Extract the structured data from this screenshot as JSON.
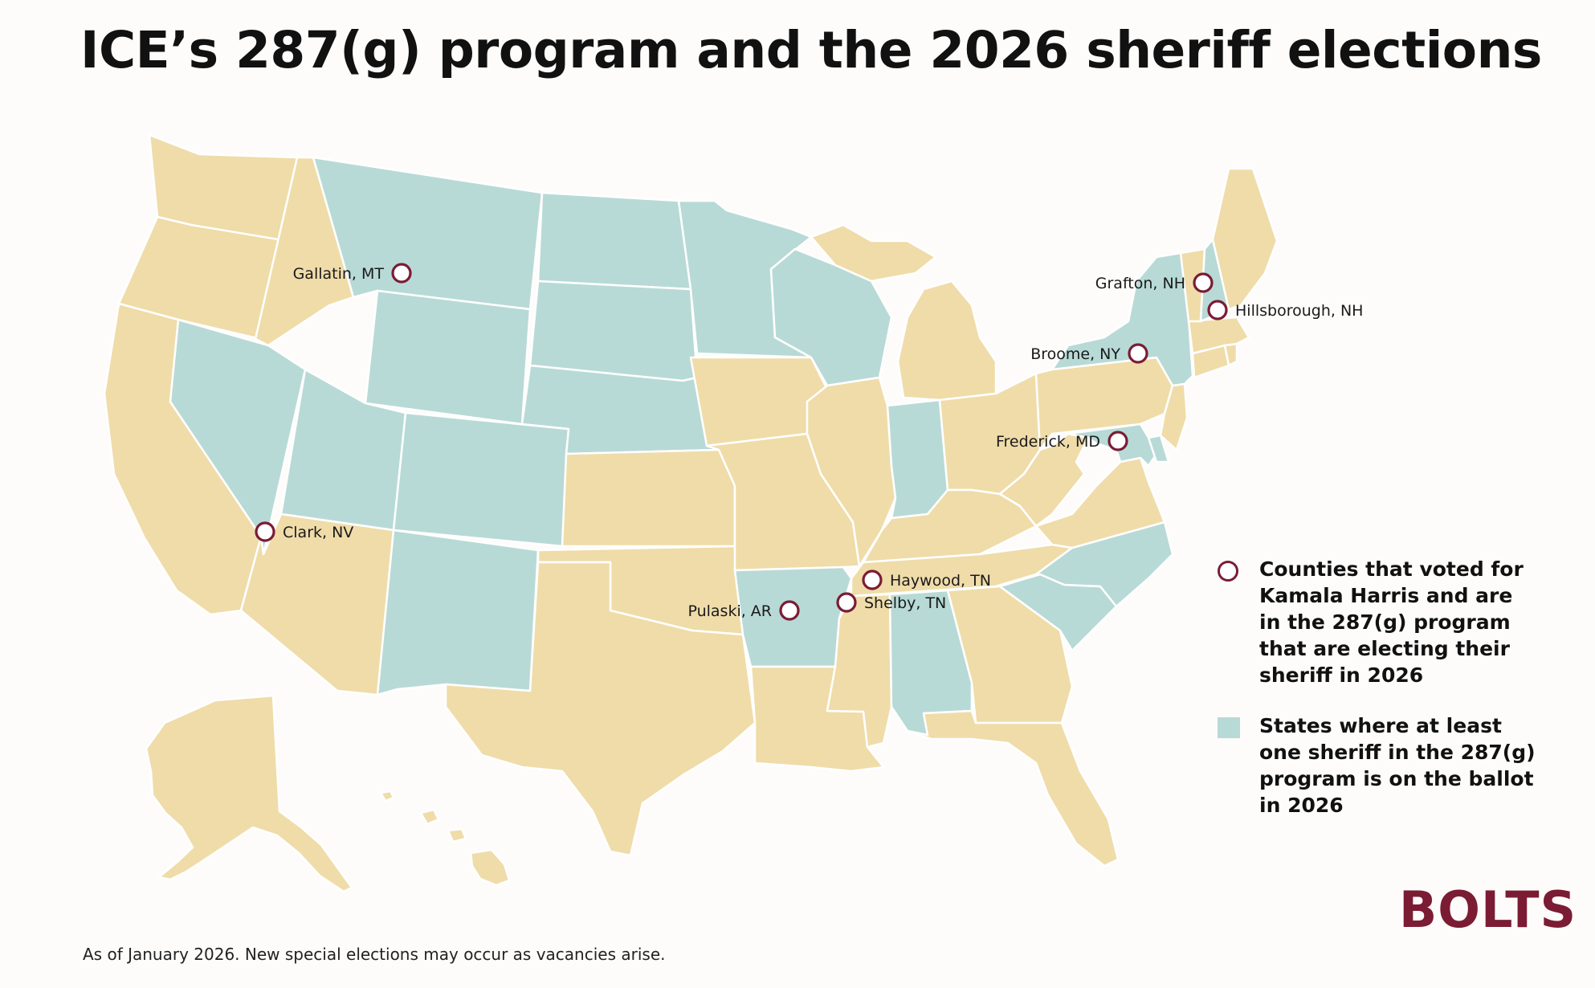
{
  "title": "ICE’s 287(g) program and the 2026 sheriff elections",
  "colors": {
    "background": "#fdfcfb",
    "state_default": "#efdca9",
    "state_highlight": "#b8dad6",
    "marker": "#7b1c34",
    "brand": "#7b1c34"
  },
  "map": {
    "highlighted_states": [
      "MT",
      "ND",
      "SD",
      "NE",
      "WY",
      "NV",
      "UT",
      "CO",
      "NM",
      "MN",
      "WI",
      "IN",
      "AR",
      "AL",
      "SC",
      "NC",
      "NY",
      "NH",
      "MD",
      "DE"
    ],
    "counties": [
      {
        "label": "Gallatin, MT",
        "state": "MT"
      },
      {
        "label": "Clark, NV",
        "state": "NV"
      },
      {
        "label": "Pulaski, AR",
        "state": "AR"
      },
      {
        "label": "Haywood, TN",
        "state": "TN"
      },
      {
        "label": "Shelby, TN",
        "state": "TN"
      },
      {
        "label": "Broome, NY",
        "state": "NY"
      },
      {
        "label": "Frederick, MD",
        "state": "MD"
      },
      {
        "label": "Grafton, NH",
        "state": "NH"
      },
      {
        "label": "Hillsborough, NH",
        "state": "NH"
      }
    ]
  },
  "legend": {
    "counties_text": "Counties that voted for Kamala Harris and are in the 287(g) program that are electing their sheriff in 2026",
    "states_text": "States where at least one sheriff in the 287(g) program is on the ballot in 2026"
  },
  "logo": "BOLTS",
  "footnote": "As of January 2026. New special elections may occur as vacancies arise."
}
